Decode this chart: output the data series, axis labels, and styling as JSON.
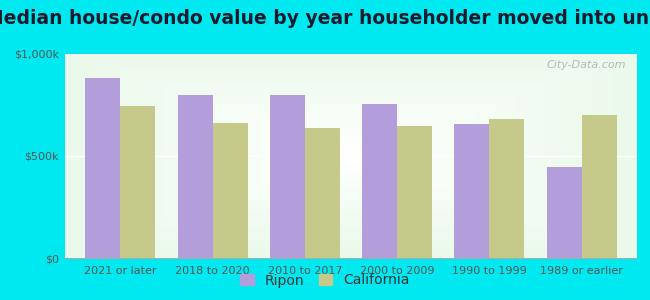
{
  "title": "Median house/condo value by year householder moved into unit",
  "categories": [
    "2021 or later",
    "2018 to 2020",
    "2010 to 2017",
    "2000 to 2009",
    "1990 to 1999",
    "1989 or earlier"
  ],
  "ripon_values": [
    880000,
    800000,
    800000,
    755000,
    655000,
    445000
  ],
  "california_values": [
    745000,
    660000,
    635000,
    645000,
    680000,
    700000
  ],
  "ripon_color": "#b39ddb",
  "california_color": "#c5c98a",
  "background_outer": "#00e8f0",
  "ylim": [
    0,
    1000000
  ],
  "ytick_labels": [
    "$0",
    "$500k",
    "$1,000k"
  ],
  "bar_width": 0.38,
  "title_fontsize": 13.5,
  "tick_fontsize": 8,
  "legend_fontsize": 10,
  "watermark_text": "City-Data.com"
}
